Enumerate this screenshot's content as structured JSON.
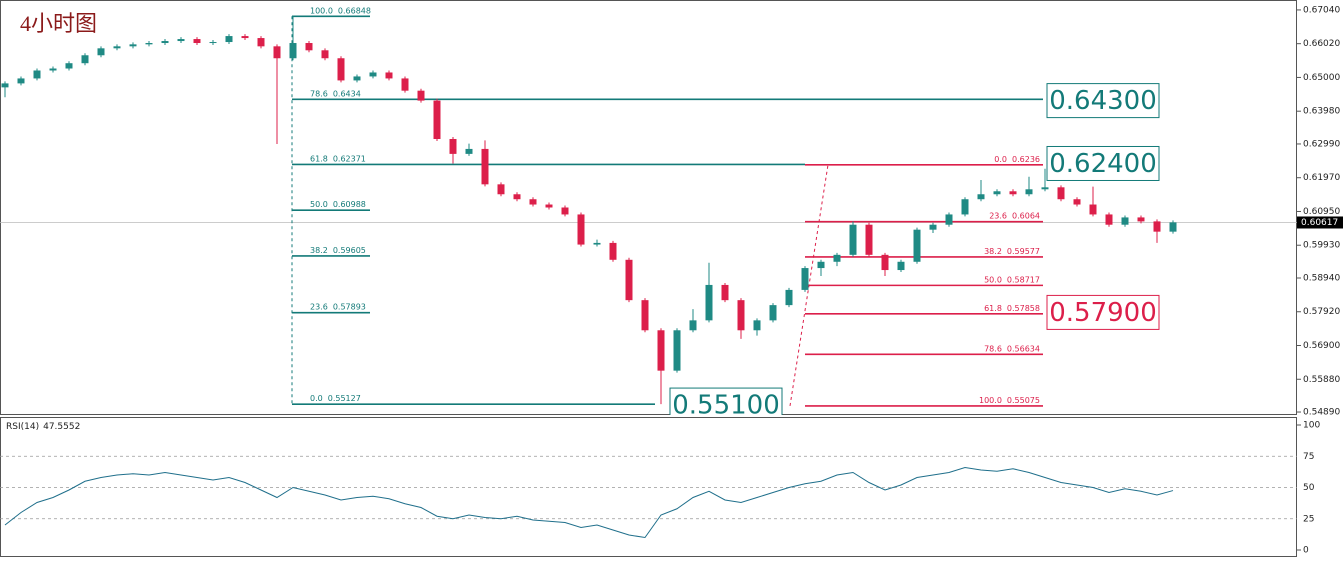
{
  "chart_data": {
    "type": "candlestick",
    "title": "4小时图",
    "up_color": "#1f8a84",
    "down_color": "#dc1f4a",
    "ylim": [
      0.548,
      0.6734
    ],
    "yticks": [
      {
        "value": 0.6704,
        "label": "0.67040"
      },
      {
        "value": 0.6602,
        "label": "0.66020"
      },
      {
        "value": 0.65,
        "label": "0.65000"
      },
      {
        "value": 0.6398,
        "label": "0.63980"
      },
      {
        "value": 0.6299,
        "label": "0.62990"
      },
      {
        "value": 0.6197,
        "label": "0.61970"
      },
      {
        "value": 0.6095,
        "label": "0.60950"
      },
      {
        "value": 0.5993,
        "label": "0.59930"
      },
      {
        "value": 0.5894,
        "label": "0.58940"
      },
      {
        "value": 0.5792,
        "label": "0.57920"
      },
      {
        "value": 0.569,
        "label": "0.56900"
      },
      {
        "value": 0.5588,
        "label": "0.55880"
      },
      {
        "value": 0.5489,
        "label": "0.54890"
      }
    ],
    "current_price": 0.60617,
    "ohlc": [
      [
        0.647,
        0.6488,
        0.644,
        0.6482
      ],
      [
        0.6482,
        0.6503,
        0.6476,
        0.6497
      ],
      [
        0.6497,
        0.6527,
        0.6491,
        0.6521
      ],
      [
        0.6521,
        0.6533,
        0.6515,
        0.6527
      ],
      [
        0.6527,
        0.6549,
        0.6521,
        0.6543
      ],
      [
        0.6543,
        0.6573,
        0.6537,
        0.6567
      ],
      [
        0.6567,
        0.6594,
        0.6561,
        0.6588
      ],
      [
        0.6588,
        0.66,
        0.6582,
        0.6594
      ],
      [
        0.6594,
        0.6606,
        0.6588,
        0.66
      ],
      [
        0.66,
        0.661,
        0.6594,
        0.6604
      ],
      [
        0.6604,
        0.6616,
        0.6598,
        0.661
      ],
      [
        0.661,
        0.6622,
        0.6604,
        0.6616
      ],
      [
        0.6616,
        0.6622,
        0.6598,
        0.6604
      ],
      [
        0.6604,
        0.6613,
        0.6598,
        0.6607
      ],
      [
        0.6607,
        0.6631,
        0.6601,
        0.6625
      ],
      [
        0.6625,
        0.6631,
        0.6613,
        0.6619
      ],
      [
        0.6619,
        0.6625,
        0.6588,
        0.6594
      ],
      [
        0.6594,
        0.66,
        0.6299,
        0.6558
      ],
      [
        0.6558,
        0.6685,
        0.6552,
        0.6604
      ],
      [
        0.6604,
        0.661,
        0.6576,
        0.6582
      ],
      [
        0.6582,
        0.6588,
        0.6552,
        0.6558
      ],
      [
        0.6558,
        0.6564,
        0.6485,
        0.6491
      ],
      [
        0.6491,
        0.6509,
        0.6485,
        0.6503
      ],
      [
        0.6503,
        0.6521,
        0.6497,
        0.6515
      ],
      [
        0.6515,
        0.6521,
        0.6491,
        0.6497
      ],
      [
        0.6497,
        0.6503,
        0.6454,
        0.646
      ],
      [
        0.646,
        0.6466,
        0.6424,
        0.643
      ],
      [
        0.643,
        0.6436,
        0.6308,
        0.6314
      ],
      [
        0.6314,
        0.632,
        0.624,
        0.6269
      ],
      [
        0.6269,
        0.63,
        0.6263,
        0.6284
      ],
      [
        0.6284,
        0.631,
        0.6171,
        0.6177
      ],
      [
        0.6177,
        0.6183,
        0.6141,
        0.6147
      ],
      [
        0.6147,
        0.6153,
        0.6126,
        0.6132
      ],
      [
        0.6132,
        0.6138,
        0.611,
        0.6116
      ],
      [
        0.6116,
        0.6122,
        0.6101,
        0.6107
      ],
      [
        0.6107,
        0.6113,
        0.608,
        0.6086
      ],
      [
        0.6086,
        0.6092,
        0.5989,
        0.5995
      ],
      [
        0.5995,
        0.601,
        0.5989,
        0.6
      ],
      [
        0.6,
        0.6006,
        0.5943,
        0.5949
      ],
      [
        0.5949,
        0.5955,
        0.5821,
        0.5827
      ],
      [
        0.5827,
        0.5833,
        0.573,
        0.5736
      ],
      [
        0.5736,
        0.5742,
        0.5513,
        0.5614
      ],
      [
        0.5614,
        0.5742,
        0.5608,
        0.5736
      ],
      [
        0.5736,
        0.58,
        0.573,
        0.5766
      ],
      [
        0.5766,
        0.594,
        0.576,
        0.5873
      ],
      [
        0.5873,
        0.5879,
        0.5821,
        0.5827
      ],
      [
        0.5827,
        0.5833,
        0.571,
        0.5736
      ],
      [
        0.5736,
        0.5772,
        0.572,
        0.5766
      ],
      [
        0.5766,
        0.5818,
        0.576,
        0.5812
      ],
      [
        0.5812,
        0.5864,
        0.5806,
        0.5858
      ],
      [
        0.5858,
        0.593,
        0.5852,
        0.5924
      ],
      [
        0.5924,
        0.5949,
        0.59,
        0.5943
      ],
      [
        0.5943,
        0.597,
        0.593,
        0.5964
      ],
      [
        0.5964,
        0.6065,
        0.5958,
        0.6055
      ],
      [
        0.6055,
        0.6061,
        0.5958,
        0.5964
      ],
      [
        0.5964,
        0.597,
        0.59,
        0.5918
      ],
      [
        0.5918,
        0.5949,
        0.5912,
        0.5943
      ],
      [
        0.5943,
        0.6046,
        0.5937,
        0.604
      ],
      [
        0.604,
        0.6061,
        0.603,
        0.6055
      ],
      [
        0.6055,
        0.6092,
        0.6049,
        0.6086
      ],
      [
        0.6086,
        0.6138,
        0.608,
        0.6132
      ],
      [
        0.6132,
        0.619,
        0.6126,
        0.6147
      ],
      [
        0.6147,
        0.6162,
        0.6141,
        0.6156
      ],
      [
        0.6156,
        0.6162,
        0.6141,
        0.6147
      ],
      [
        0.6147,
        0.62,
        0.6141,
        0.6162
      ],
      [
        0.6162,
        0.6224,
        0.6156,
        0.6168
      ],
      [
        0.6168,
        0.6174,
        0.6126,
        0.6132
      ],
      [
        0.6132,
        0.6138,
        0.611,
        0.6116
      ],
      [
        0.6116,
        0.617,
        0.608,
        0.6086
      ],
      [
        0.6086,
        0.6092,
        0.6049,
        0.6055
      ],
      [
        0.6055,
        0.6083,
        0.6049,
        0.6077
      ],
      [
        0.6077,
        0.6083,
        0.6059,
        0.6065
      ],
      [
        0.6065,
        0.6071,
        0.6,
        0.6034
      ],
      [
        0.6034,
        0.6068,
        0.6028,
        0.6062
      ]
    ],
    "fib_sets": [
      {
        "color": "#137a78",
        "levels": [
          {
            "pct": "100.0",
            "price": 0.66848
          },
          {
            "pct": "78.6",
            "price": 0.6434
          },
          {
            "pct": "61.8",
            "price": 0.62371
          },
          {
            "pct": "50.0",
            "price": 0.60988
          },
          {
            "pct": "38.2",
            "price": 0.59605
          },
          {
            "pct": "23.6",
            "price": 0.57893
          },
          {
            "pct": "0.0",
            "price": 0.55127
          }
        ]
      },
      {
        "color": "#dc1f4a",
        "levels": [
          {
            "pct": "0.0",
            "price": 0.6236
          },
          {
            "pct": "23.6",
            "price": 0.6064
          },
          {
            "pct": "38.2",
            "price": 0.59577
          },
          {
            "pct": "50.0",
            "price": 0.58717
          },
          {
            "pct": "61.8",
            "price": 0.57858
          },
          {
            "pct": "78.6",
            "price": 0.56634
          },
          {
            "pct": "100.0",
            "price": 0.55075
          }
        ]
      }
    ],
    "annotations": [
      {
        "value": 0.643,
        "label": "0.64300",
        "color": "#137a78"
      },
      {
        "value": 0.624,
        "label": "0.62400",
        "color": "#137a78"
      },
      {
        "value": 0.579,
        "label": "0.57900",
        "color": "#dc1f4a"
      },
      {
        "value": 0.551,
        "label": "0.55100",
        "color": "#137a78"
      }
    ],
    "rsi": {
      "name": "RSI(14)",
      "color": "#1f6f8b",
      "ylim": [
        -5.6,
        105.6
      ],
      "yticks": [
        100,
        75,
        50,
        25,
        0
      ],
      "values": [
        20,
        30,
        38,
        42,
        48,
        55,
        58,
        60,
        61,
        60,
        62,
        60,
        58,
        56,
        58,
        54,
        48,
        42,
        50,
        47,
        44,
        40,
        42,
        43,
        41,
        37,
        34,
        27,
        25,
        28,
        26,
        25,
        27,
        24,
        23,
        22,
        18,
        20,
        16,
        12,
        10,
        28,
        33,
        42,
        47,
        40,
        38,
        42,
        46,
        50,
        53,
        55,
        60,
        62,
        54,
        48,
        52,
        58,
        60,
        62,
        66,
        64,
        63,
        65,
        62,
        58,
        54,
        52,
        50,
        46,
        49,
        47,
        44,
        47.5552
      ]
    }
  }
}
